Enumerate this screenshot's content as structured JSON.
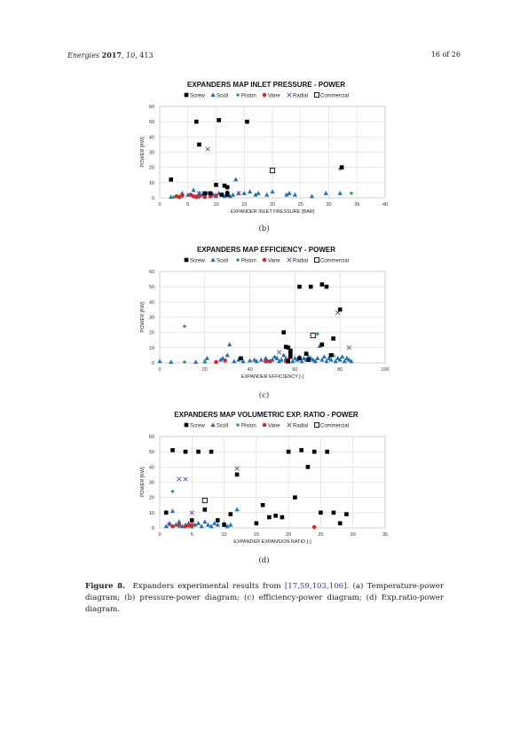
{
  "header": {
    "journal": "Energies",
    "year": "2017",
    "volume": "10",
    "article": "413",
    "page": "16 of 26"
  },
  "colors": {
    "screw": "#000000",
    "scroll": "#1f6fb7",
    "piston": "#2ca24a",
    "vane": "#d6262b",
    "radial": "#7b3fa6",
    "commercial": "#000000"
  },
  "legend": [
    "Screw",
    "Scoll",
    "Piston",
    "Vane",
    "Radial",
    "Commercial"
  ],
  "chart_data": [
    {
      "type": "scatter",
      "panel": "(b)",
      "title": "EXPANDERS MAP INLET PRESSURE - POWER",
      "xlabel": "EXPANDER INLET PRESSURE [BAR]",
      "ylabel": "POWER [KW]",
      "xlim": [
        0,
        40
      ],
      "ylim": [
        0,
        60
      ],
      "xticks": [
        0,
        5,
        10,
        15,
        20,
        25,
        30,
        35,
        40
      ],
      "yticks": [
        0,
        10,
        20,
        30,
        40,
        50,
        60
      ],
      "grid": true,
      "legend_position": "top",
      "series": [
        {
          "name": "Screw",
          "points": [
            [
              2,
              12
            ],
            [
              6.5,
              50
            ],
            [
              7,
              35
            ],
            [
              10.5,
              51
            ],
            [
              15.5,
              50
            ],
            [
              10,
              8.5
            ],
            [
              11.5,
              8
            ],
            [
              12,
              7
            ],
            [
              32.3,
              20
            ],
            [
              9,
              3
            ],
            [
              11,
              2
            ],
            [
              12,
              2
            ],
            [
              8,
              3
            ],
            [
              12,
              3
            ]
          ]
        },
        {
          "name": "Scoll",
          "points": [
            [
              2,
              0.5
            ],
            [
              3,
              1
            ],
            [
              4,
              3
            ],
            [
              5,
              2
            ],
            [
              6,
              5
            ],
            [
              6.5,
              1
            ],
            [
              7,
              3
            ],
            [
              7.5,
              2
            ],
            [
              8,
              2
            ],
            [
              8.5,
              3
            ],
            [
              9,
              1
            ],
            [
              9.5,
              2
            ],
            [
              10,
              1
            ],
            [
              10.5,
              3
            ],
            [
              11,
              2
            ],
            [
              11.5,
              1
            ],
            [
              12,
              4
            ],
            [
              12.5,
              1
            ],
            [
              13,
              2
            ],
            [
              13.5,
              12
            ],
            [
              14,
              3
            ],
            [
              15,
              3
            ],
            [
              16,
              4
            ],
            [
              17,
              2
            ],
            [
              17.5,
              3
            ],
            [
              19,
              2
            ],
            [
              20,
              4
            ],
            [
              22.5,
              2
            ],
            [
              23,
              3
            ],
            [
              24,
              2
            ],
            [
              27,
              1
            ],
            [
              29.5,
              3
            ],
            [
              32,
              3
            ]
          ]
        },
        {
          "name": "Piston",
          "points": [
            [
              2.5,
              0.5
            ],
            [
              3.5,
              1
            ],
            [
              7,
              0.5
            ],
            [
              32,
              19
            ],
            [
              34,
              3
            ]
          ]
        },
        {
          "name": "Vane",
          "points": [
            [
              3,
              1
            ],
            [
              3.5,
              0.5
            ],
            [
              4,
              1.5
            ],
            [
              5.5,
              2
            ],
            [
              6,
              1
            ],
            [
              6.5,
              0.5
            ],
            [
              7,
              1
            ],
            [
              8,
              0.5
            ],
            [
              9,
              1
            ],
            [
              10,
              1.5
            ]
          ]
        },
        {
          "name": "Radial",
          "points": [
            [
              8.5,
              32
            ],
            [
              14,
              3
            ],
            [
              7,
              3
            ]
          ]
        },
        {
          "name": "Commercial",
          "points": [
            [
              20,
              18
            ]
          ]
        }
      ]
    },
    {
      "type": "scatter",
      "panel": "(c)",
      "title": "EXPANDERS MAP EFFICIENCY - POWER",
      "xlabel": "EXPANDER EFFICIENCY [-]",
      "ylabel": "POWER [KW]",
      "xlim": [
        0,
        100
      ],
      "ylim": [
        0,
        60
      ],
      "xticks": [
        0,
        20,
        40,
        60,
        80,
        100
      ],
      "yticks": [
        0,
        10,
        20,
        30,
        40,
        50,
        60
      ],
      "grid": true,
      "legend_position": "top",
      "series": [
        {
          "name": "Screw",
          "points": [
            [
              62,
              50
            ],
            [
              67,
              50
            ],
            [
              72,
              51.5
            ],
            [
              74,
              50
            ],
            [
              80,
              35
            ],
            [
              55,
              20
            ],
            [
              56,
              10.5
            ],
            [
              57,
              10
            ],
            [
              58,
              8
            ],
            [
              58,
              6
            ],
            [
              58,
              4
            ],
            [
              65,
              6
            ],
            [
              66,
              2
            ],
            [
              72,
              12
            ],
            [
              77,
              16
            ],
            [
              76,
              5
            ],
            [
              36,
              3
            ],
            [
              57,
              1
            ],
            [
              62,
              3
            ]
          ]
        },
        {
          "name": "Scoll",
          "points": [
            [
              0,
              1
            ],
            [
              5,
              0.5
            ],
            [
              16,
              0.5
            ],
            [
              20,
              1
            ],
            [
              21,
              3
            ],
            [
              27,
              2
            ],
            [
              28,
              3
            ],
            [
              30,
              5
            ],
            [
              31,
              12
            ],
            [
              33,
              1
            ],
            [
              35,
              2
            ],
            [
              37,
              1
            ],
            [
              40,
              1.5
            ],
            [
              42,
              2
            ],
            [
              43,
              1
            ],
            [
              45,
              2
            ],
            [
              47,
              3
            ],
            [
              48,
              1
            ],
            [
              50,
              2
            ],
            [
              51,
              4
            ],
            [
              52,
              3
            ],
            [
              53,
              1
            ],
            [
              54,
              2
            ],
            [
              55,
              5
            ],
            [
              56,
              3
            ],
            [
              57,
              2
            ],
            [
              59,
              1
            ],
            [
              60,
              3
            ],
            [
              61,
              2
            ],
            [
              62,
              4
            ],
            [
              63,
              1
            ],
            [
              64,
              3
            ],
            [
              65,
              2
            ],
            [
              66,
              4
            ],
            [
              67,
              3
            ],
            [
              68,
              2
            ],
            [
              69,
              1
            ],
            [
              70,
              3
            ],
            [
              71,
              11
            ],
            [
              72,
              2
            ],
            [
              73,
              4
            ],
            [
              74,
              1
            ],
            [
              75,
              3
            ],
            [
              76,
              2
            ],
            [
              77,
              5
            ],
            [
              78,
              1
            ],
            [
              79,
              3
            ],
            [
              80,
              2
            ],
            [
              81,
              4
            ],
            [
              82,
              1
            ],
            [
              83,
              3
            ],
            [
              84,
              2
            ],
            [
              85,
              1
            ]
          ]
        },
        {
          "name": "Piston",
          "points": [
            [
              11,
              24
            ],
            [
              11,
              0.5
            ],
            [
              20,
              0.5
            ],
            [
              49,
              1
            ],
            [
              70,
              19
            ]
          ]
        },
        {
          "name": "Vane",
          "points": [
            [
              25,
              0.5
            ],
            [
              29,
              1.5
            ],
            [
              47,
              1
            ],
            [
              49,
              1
            ],
            [
              56,
              1
            ],
            [
              57,
              2
            ]
          ]
        },
        {
          "name": "Radial",
          "points": [
            [
              79,
              33
            ],
            [
              84,
              10
            ],
            [
              53,
              7
            ]
          ]
        },
        {
          "name": "Commercial",
          "points": [
            [
              68,
              18
            ]
          ]
        }
      ]
    },
    {
      "type": "scatter",
      "panel": "(d)",
      "title": "EXPANDERS MAP VOLUMETRIC EXP. RATIO - POWER",
      "xlabel": "EXPANDER EXPANSION RATIO [-]",
      "ylabel": "POWER [KW]",
      "xlim": [
        0,
        35
      ],
      "ylim": [
        0,
        60
      ],
      "xticks": [
        0,
        5,
        10,
        15,
        20,
        25,
        30,
        35
      ],
      "yticks": [
        0,
        10,
        20,
        30,
        40,
        50,
        60
      ],
      "grid": true,
      "legend_position": "top",
      "series": [
        {
          "name": "Screw",
          "points": [
            [
              2,
              51
            ],
            [
              4,
              50
            ],
            [
              6,
              50
            ],
            [
              8,
              50
            ],
            [
              12,
              35
            ],
            [
              20,
              50
            ],
            [
              22,
              51
            ],
            [
              24,
              50
            ],
            [
              26,
              50
            ],
            [
              23,
              40
            ],
            [
              21,
              20
            ],
            [
              16,
              15
            ],
            [
              7,
              12
            ],
            [
              11,
              9
            ],
            [
              17,
              7
            ],
            [
              18,
              8
            ],
            [
              19,
              7
            ],
            [
              25,
              10
            ],
            [
              27,
              10
            ],
            [
              29,
              9
            ],
            [
              1,
              10
            ],
            [
              5,
              5
            ],
            [
              9,
              5
            ],
            [
              15,
              3
            ],
            [
              28,
              3
            ],
            [
              10,
              2
            ]
          ]
        },
        {
          "name": "Scoll",
          "points": [
            [
              1,
              1
            ],
            [
              1.5,
              3
            ],
            [
              2,
              11
            ],
            [
              2.5,
              2
            ],
            [
              3,
              4
            ],
            [
              3.5,
              1
            ],
            [
              4,
              2
            ],
            [
              4.5,
              3
            ],
            [
              5,
              1
            ],
            [
              5.5,
              2
            ],
            [
              6,
              3
            ],
            [
              6.5,
              1
            ],
            [
              7,
              4
            ],
            [
              7.5,
              2
            ],
            [
              8,
              1
            ],
            [
              8.5,
              3
            ],
            [
              9,
              2
            ],
            [
              10,
              3
            ],
            [
              10.5,
              1
            ],
            [
              11,
              2
            ],
            [
              12,
              12
            ]
          ]
        },
        {
          "name": "Piston",
          "points": [
            [
              2,
              24
            ],
            [
              3,
              1
            ],
            [
              5,
              0.5
            ]
          ]
        },
        {
          "name": "Vane",
          "points": [
            [
              2,
              1
            ],
            [
              3,
              2
            ],
            [
              4,
              1
            ],
            [
              4.5,
              1.5
            ],
            [
              5,
              2
            ],
            [
              24,
              0.5
            ]
          ]
        },
        {
          "name": "Radial",
          "points": [
            [
              3,
              32
            ],
            [
              4,
              32
            ],
            [
              12,
              39
            ],
            [
              5,
              10
            ],
            [
              1.5,
              2
            ]
          ]
        },
        {
          "name": "Commercial",
          "points": [
            [
              7,
              18
            ]
          ]
        }
      ]
    }
  ],
  "subcaptions": [
    "(b)",
    "(c)",
    "(d)"
  ],
  "caption": {
    "label": "Figure 8.",
    "text_before": "Expanders experimental results from ",
    "refs": "[17,59,103,106]",
    "text_after": ". (a) Temperature-power diagram; (b) pressure-power diagram; (c) efficiency-power diagram; (d) Exp.ratio-power diagram."
  }
}
